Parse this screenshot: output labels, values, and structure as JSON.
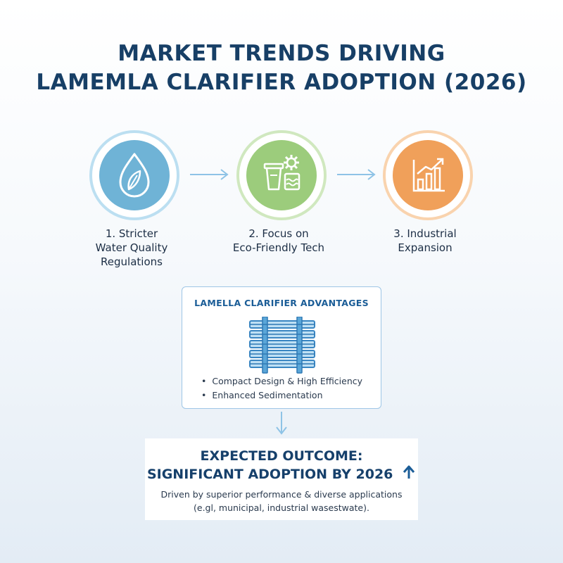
{
  "title": {
    "line1": "MARKET TRENDS DRIVING",
    "line2": "LAMEMLA CLARIFIER ADOPTION (2026)"
  },
  "steps": [
    {
      "line1": "1. Stricter",
      "line2": "Water Quality",
      "line3": "Regulations",
      "icon": "water-drop-leaf-icon",
      "color": "#6fb3d6"
    },
    {
      "line1": "2. Focus on",
      "line2": "Eco-Friendly Tech",
      "icon": "eco-tech-icon",
      "color": "#9ccc7c"
    },
    {
      "line1": "3. Industrial",
      "line2": "Expansion",
      "icon": "growth-chart-icon",
      "color": "#f0a05a"
    }
  ],
  "advantages": {
    "title": "LAMELLA CLARIFIER ADVANTAGES",
    "icon": "lamella-plates-icon",
    "items": [
      "Compact Design & High Efficiency",
      "Enhanced Sedimentation"
    ]
  },
  "outcome": {
    "line1": "EXPECTED OUTCOME:",
    "line2": "SIGNIFICANT ADOPTION BY 2026",
    "icon": "up-arrow-icon",
    "desc1": "Driven by superior performance & diverse applications",
    "desc2": "(e.gl, municipal, industrial wasestwate)."
  },
  "colors": {
    "title": "#173f66",
    "accent_blue": "#1b5d97",
    "connector": "#8ec3e6"
  }
}
